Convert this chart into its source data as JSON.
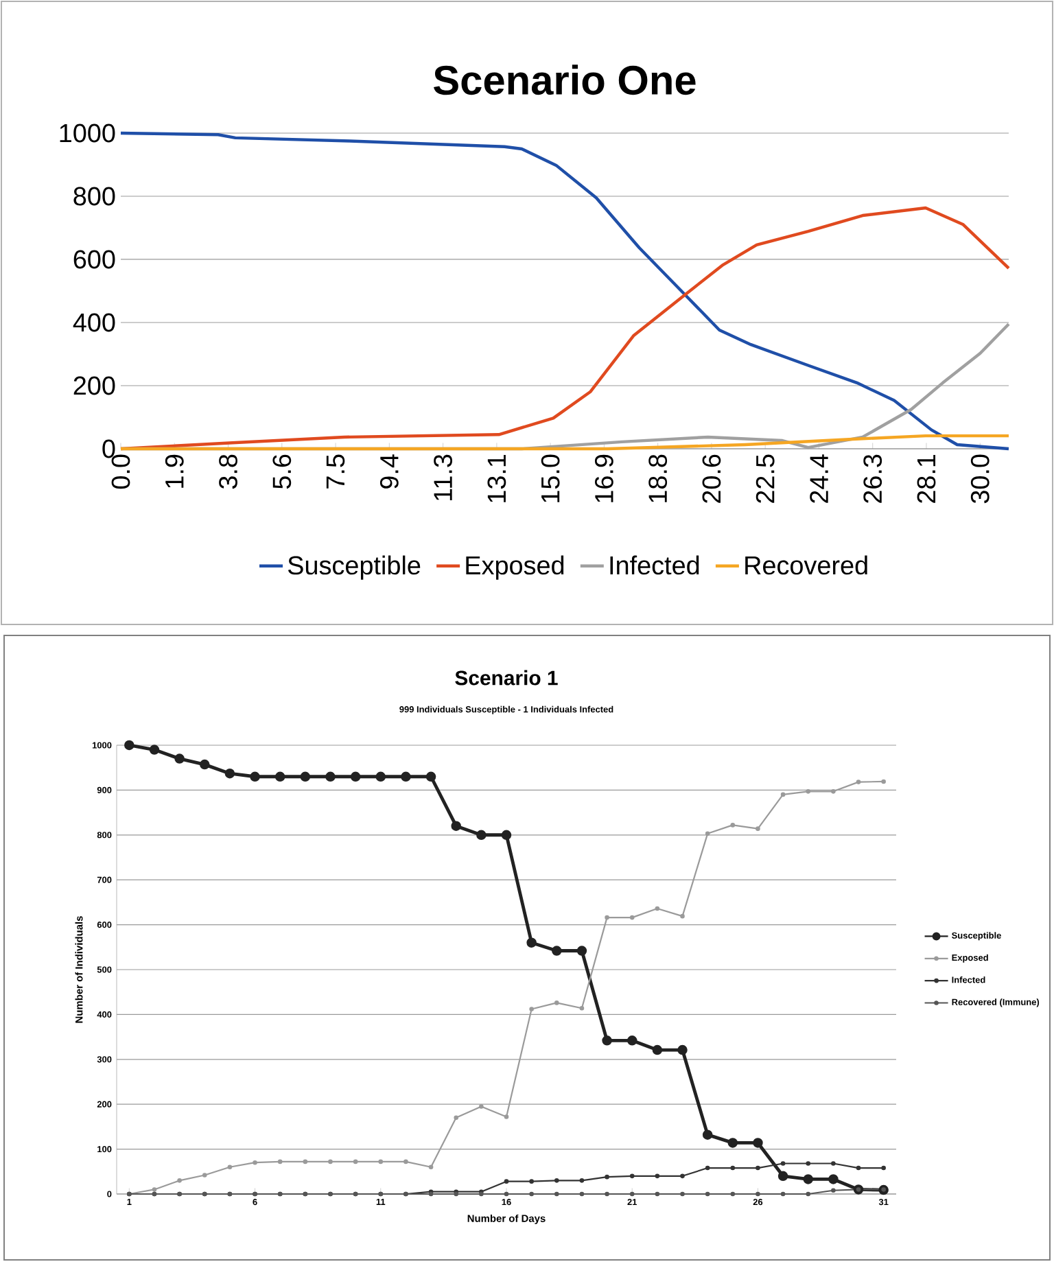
{
  "chart_data": [
    {
      "type": "line",
      "title": "Scenario One",
      "xlim": [
        0,
        31
      ],
      "ylim": [
        0,
        1000
      ],
      "xticks": [
        {
          "value": 0,
          "label": "0.0"
        },
        {
          "value": 1.875,
          "label": "1.9"
        },
        {
          "value": 3.75,
          "label": "3.8"
        },
        {
          "value": 5.625,
          "label": "5.6"
        },
        {
          "value": 7.5,
          "label": "7.5"
        },
        {
          "value": 9.375,
          "label": "9.4"
        },
        {
          "value": 11.25,
          "label": "11.3"
        },
        {
          "value": 13.125,
          "label": "13.1"
        },
        {
          "value": 15,
          "label": "15.0"
        },
        {
          "value": 16.875,
          "label": "16.9"
        },
        {
          "value": 18.75,
          "label": "18.8"
        },
        {
          "value": 20.625,
          "label": "20.6"
        },
        {
          "value": 22.5,
          "label": "22.5"
        },
        {
          "value": 24.375,
          "label": "24.4"
        },
        {
          "value": 26.25,
          "label": "26.3"
        },
        {
          "value": 28.125,
          "label": "28.1"
        },
        {
          "value": 30,
          "label": "30.0"
        }
      ],
      "yticks": [
        0,
        200,
        400,
        600,
        800,
        1000
      ],
      "grid": "y",
      "legend": "bottom",
      "marker": "none",
      "line_style": "solid",
      "series": [
        {
          "name": "Susceptible",
          "color": "#1f4fa8",
          "x": [
            0,
            3.4,
            4,
            8,
            13.4,
            14,
            15.2,
            16.6,
            18.1,
            19.7,
            20.9,
            22.0,
            24.0,
            25.7,
            27.0,
            28.3,
            29.2,
            31.0
          ],
          "values": [
            1000,
            995,
            985,
            975,
            957,
            950,
            898,
            795,
            637,
            488,
            376,
            330,
            264,
            209,
            153,
            60,
            13,
            0
          ]
        },
        {
          "name": "Exposed",
          "color": "#e04a1f",
          "x": [
            0,
            3.9,
            7.8,
            13.2,
            15.1,
            16.4,
            17.9,
            19.7,
            21.0,
            22.2,
            24.0,
            25.9,
            28.1,
            29.4,
            31.0
          ],
          "values": [
            0,
            19,
            37,
            45,
            97,
            181,
            358,
            488,
            581,
            646,
            689,
            739,
            763,
            711,
            572
          ]
        },
        {
          "name": "Infected",
          "color": "#a0a0a0",
          "x": [
            0,
            14,
            17.5,
            20.5,
            23.1,
            24.0,
            25.9,
            27.6,
            28.7,
            30.0,
            31.0
          ],
          "values": [
            0,
            0,
            22,
            37,
            26,
            4,
            37,
            125,
            209,
            302,
            395
          ]
        },
        {
          "name": "Recovered",
          "color": "#f5a623",
          "x": [
            0,
            17,
            21.8,
            25.9,
            28.1,
            31.0
          ],
          "values": [
            0,
            0,
            13,
            32,
            41,
            41
          ]
        }
      ]
    },
    {
      "type": "line",
      "title": "Scenario 1",
      "subtitle": "999 Individuals Susceptible - 1 Individuals Infected",
      "xlabel": "Number of Days",
      "ylabel": "Number of Individuals",
      "x": [
        1,
        2,
        3,
        4,
        5,
        6,
        7,
        8,
        9,
        10,
        11,
        12,
        13,
        14,
        15,
        16,
        17,
        18,
        19,
        20,
        21,
        22,
        23,
        24,
        25,
        26,
        27,
        28,
        29,
        30,
        31
      ],
      "xlim": [
        0.5,
        31.5
      ],
      "ylim": [
        0,
        1000
      ],
      "xticks": [
        1,
        6,
        11,
        16,
        21,
        26,
        31
      ],
      "yticks": [
        0,
        100,
        200,
        300,
        400,
        500,
        600,
        700,
        800,
        900,
        1000
      ],
      "grid": "y",
      "legend": "right",
      "marker": "circle",
      "line_style": "solid",
      "series": [
        {
          "name": "Susceptible",
          "color": "#222222",
          "values": [
            1000,
            990,
            970,
            957,
            937,
            930,
            930,
            930,
            930,
            930,
            930,
            930,
            930,
            820,
            800,
            800,
            560,
            542,
            542,
            342,
            342,
            321,
            321,
            132,
            114,
            114,
            40,
            33,
            33,
            10,
            9
          ]
        },
        {
          "name": "Exposed",
          "color": "#9a9a9a",
          "values": [
            0,
            10,
            30,
            42,
            60,
            70,
            72,
            72,
            72,
            72,
            72,
            72,
            60,
            170,
            195,
            172,
            412,
            426,
            414,
            616,
            616,
            636,
            619,
            803,
            822,
            814,
            890,
            897,
            897,
            918,
            919
          ]
        },
        {
          "name": "Infected",
          "color": "#333333",
          "values": [
            0,
            0,
            0,
            0,
            0,
            0,
            0,
            0,
            0,
            0,
            0,
            0,
            5,
            5,
            5,
            28,
            28,
            30,
            30,
            38,
            40,
            40,
            40,
            58,
            58,
            58,
            68,
            68,
            68,
            58,
            58
          ]
        },
        {
          "name": "Recovered (Immune)",
          "color": "#555555",
          "values": [
            0,
            0,
            0,
            0,
            0,
            0,
            0,
            0,
            0,
            0,
            0,
            0,
            0,
            0,
            0,
            0,
            0,
            0,
            0,
            0,
            0,
            0,
            0,
            0,
            0,
            0,
            0,
            0,
            8,
            10,
            10
          ]
        }
      ]
    }
  ]
}
